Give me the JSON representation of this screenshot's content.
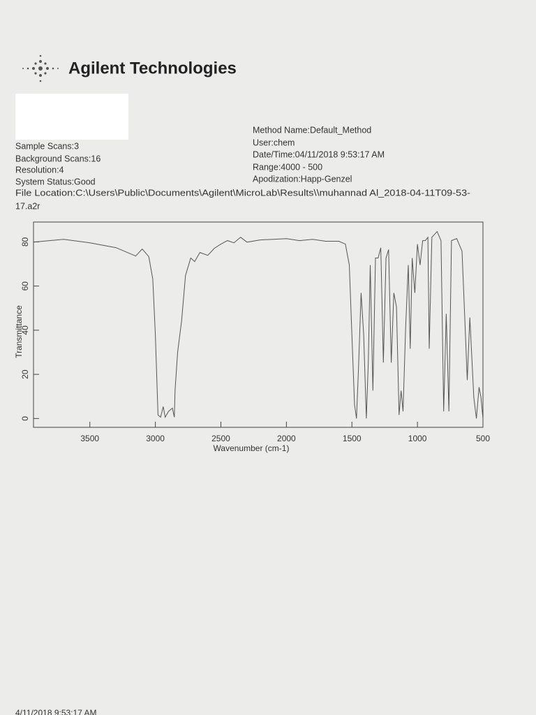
{
  "header": {
    "brand": "Agilent Technologies",
    "left_lines": [
      "Sample Scans:3",
      "Background Scans:16",
      "Resolution:4",
      "System Status:Good"
    ],
    "right_lines": [
      "Method Name:Default_Method",
      "User:chem",
      "Date/Time:04/11/2018 9:53:17 AM",
      "Range:4000 - 500",
      "Apodization:Happ-Genzel"
    ],
    "file_location": [
      "File Location:C:\\Users\\Public\\Documents\\Agilent\\MicroLab\\Results\\\\muhannad Al_2018-04-11T09-53-",
      "17.a2r"
    ]
  },
  "footer": "4/11/2018 9:53:17 AM",
  "chart_data": {
    "type": "line",
    "x_label": "Wavenumber (cm-1)",
    "y_label": "Transmittance",
    "xlim": [
      3930,
      500
    ],
    "ylim": [
      -4,
      89
    ],
    "xticks": [
      3500,
      3000,
      2500,
      2000,
      1500,
      1000,
      500
    ],
    "yticks": [
      0,
      20,
      40,
      60,
      80
    ],
    "series": [
      {
        "color": "#555555",
        "x": [
          3930,
          3700,
          3500,
          3300,
          3150,
          3100,
          3050,
          3020,
          3000,
          2980,
          2960,
          2940,
          2925,
          2900,
          2870,
          2855,
          2850,
          2830,
          2800,
          2770,
          2730,
          2700,
          2660,
          2600,
          2550,
          2500,
          2450,
          2400,
          2350,
          2300,
          2200,
          2100,
          2000,
          1900,
          1800,
          1700,
          1600,
          1550,
          1520,
          1500,
          1480,
          1465,
          1450,
          1430,
          1410,
          1390,
          1375,
          1360,
          1340,
          1320,
          1300,
          1280,
          1260,
          1240,
          1220,
          1200,
          1180,
          1160,
          1140,
          1125,
          1110,
          1090,
          1070,
          1055,
          1040,
          1020,
          1000,
          980,
          960,
          940,
          920,
          910,
          890,
          850,
          820,
          800,
          780,
          760,
          740,
          700,
          660,
          640,
          620,
          600,
          570,
          550,
          530,
          515,
          500
        ],
        "values": [
          79.9,
          81.2,
          79.6,
          77.4,
          73.6,
          76.8,
          73.3,
          63.2,
          37.9,
          1.6,
          0.6,
          5.4,
          0.6,
          3.2,
          4.7,
          0.6,
          12.6,
          30.0,
          44.2,
          64.8,
          72.7,
          71.1,
          75.2,
          73.9,
          77.1,
          79.0,
          80.6,
          79.6,
          82.1,
          79.9,
          80.9,
          81.2,
          81.5,
          80.6,
          81.2,
          80.3,
          80.3,
          79.0,
          69.5,
          37.9,
          6.3,
          0,
          22.1,
          56.9,
          37.9,
          0,
          25.3,
          69.5,
          12.6,
          72.7,
          72.7,
          77.4,
          25.3,
          72.7,
          76.5,
          25.3,
          56.9,
          50.6,
          1.6,
          12.6,
          3.2,
          41.1,
          69.5,
          31.6,
          72.7,
          56.9,
          79.0,
          69.5,
          80.6,
          80.6,
          82.1,
          31.6,
          82.1,
          84.7,
          80.6,
          3.2,
          47.4,
          3.2,
          80.6,
          81.5,
          75.8,
          47.4,
          17.4,
          45.8,
          9.5,
          0,
          14.2,
          9.5,
          0
        ]
      }
    ]
  }
}
